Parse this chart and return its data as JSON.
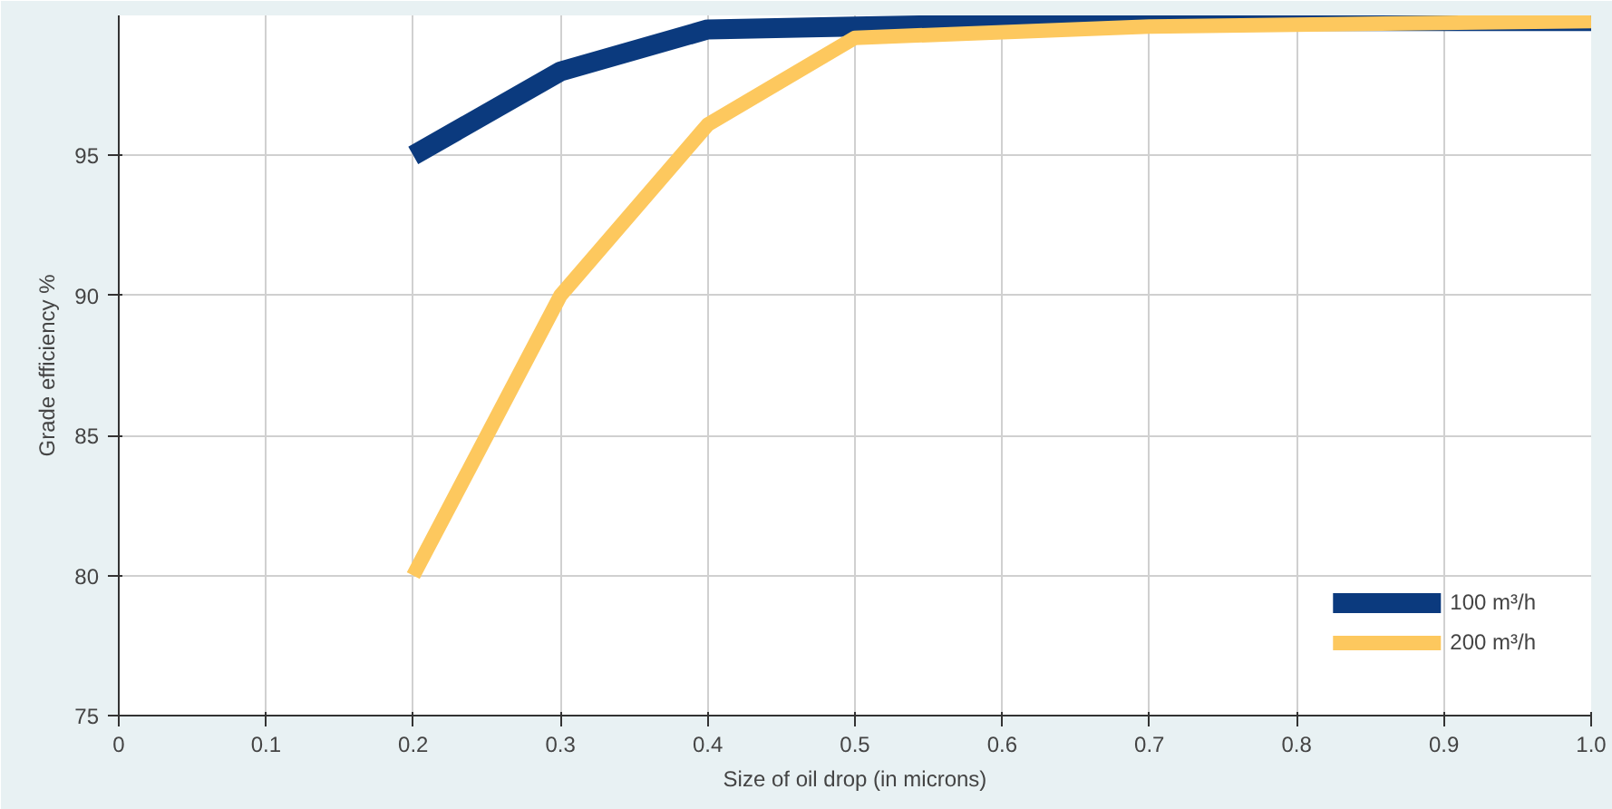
{
  "chart_data": {
    "type": "line",
    "xlabel": "Size of oil drop (in microns)",
    "ylabel": "Grade efficiency %",
    "x": [
      0.2,
      0.3,
      0.4,
      0.5,
      0.7,
      1.0
    ],
    "series": [
      {
        "name": "100 m³/h",
        "color": "#0b3a7e",
        "values": [
          95,
          98,
          99.5,
          99.6,
          99.8,
          99.8
        ]
      },
      {
        "name": "200 m³/h",
        "color": "#fdc85e",
        "values": [
          80,
          90,
          96.1,
          99.2,
          99.6,
          99.8
        ]
      }
    ],
    "xlim": [
      0,
      1.0
    ],
    "ylim": [
      75,
      100
    ],
    "xticks": [
      0,
      0.1,
      0.2,
      0.3,
      0.4,
      0.5,
      0.6,
      0.7,
      0.8,
      0.9,
      {
        "value": 1.0,
        "label": "1.0"
      }
    ],
    "yticks": [
      75,
      80,
      85,
      90,
      95
    ],
    "grid": true,
    "legend": "bottom right",
    "marker": "none",
    "line_style": "solid"
  }
}
